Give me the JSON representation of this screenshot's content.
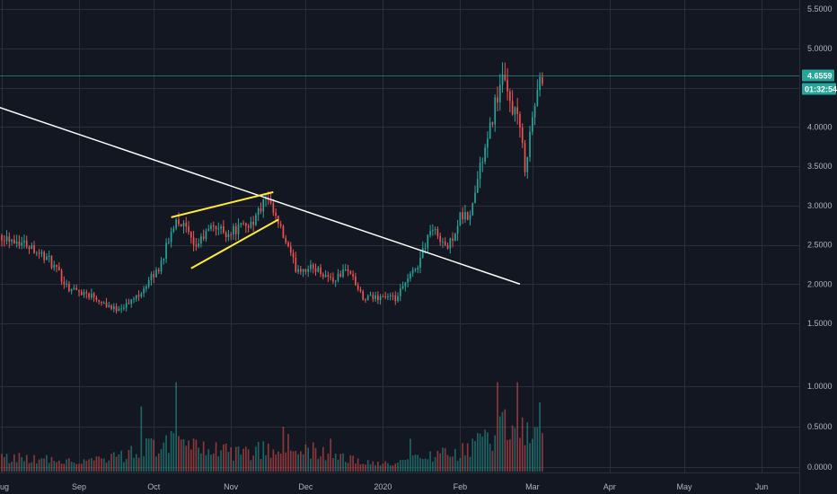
{
  "chart_data": {
    "type": "candlestick",
    "symbol_type": "price chart with volume histogram",
    "x_axis": {
      "labels": [
        "Aug",
        "Sep",
        "Oct",
        "Nov",
        "Dec",
        "2020",
        "Feb",
        "Mar",
        "Apr",
        "May",
        "Jun"
      ],
      "label_dates": [
        "2019-08-01",
        "2019-09-01",
        "2019-10-01",
        "2019-11-01",
        "2019-12-01",
        "2020-01-01",
        "2020-02-01",
        "2020-03-01",
        "2020-04-01",
        "2020-05-01",
        "2020-06-01"
      ],
      "range": [
        "2019-08-01",
        "2020-06-15"
      ]
    },
    "price_axis": {
      "ticks": [
        1.5,
        2.0,
        2.5,
        3.0,
        3.5,
        4.0,
        4.5,
        5.0,
        5.5
      ],
      "tick_labels": [
        "1.5000",
        "2.0000",
        "2.5000",
        "3.0000",
        "3.5000",
        "4.0000",
        "4.5000",
        "5.0000",
        "5.5000"
      ],
      "range": [
        1.25,
        5.6
      ]
    },
    "volume_axis": {
      "ticks": [
        0.0,
        0.5,
        1.0
      ],
      "tick_labels": [
        "0.0000",
        "0.5000",
        "1.0000"
      ],
      "range": [
        -0.38,
        1.04
      ]
    },
    "current_price": {
      "value": 4.6559,
      "label": "4.6559",
      "countdown": "01:32:54",
      "color": "#26a69a"
    },
    "colors": {
      "up": "#26a69a",
      "down": "#ef5350",
      "background": "#131722",
      "grid": "#2a2e39",
      "trendline": "#ffffff",
      "pattern_lines": "#ffeb3b"
    },
    "grid": true,
    "annotations": [
      {
        "type": "trendline",
        "color": "#ffffff",
        "start": [
          "2019-07-28",
          4.28
        ],
        "end": [
          "2020-02-25",
          2.0
        ]
      },
      {
        "type": "line",
        "color": "#ffeb3b",
        "start": [
          "2019-10-08",
          2.85
        ],
        "end": [
          "2019-11-18",
          3.17
        ]
      },
      {
        "type": "line",
        "color": "#ffeb3b",
        "start": [
          "2019-10-16",
          2.2
        ],
        "end": [
          "2019-11-20",
          2.82
        ]
      }
    ],
    "price_path": [
      [
        "2019-08-01",
        2.62
      ],
      [
        "2019-08-12",
        2.5
      ],
      [
        "2019-08-20",
        2.3
      ],
      [
        "2019-08-28",
        1.95
      ],
      [
        "2019-09-07",
        1.85
      ],
      [
        "2019-09-15",
        1.68
      ],
      [
        "2019-09-21",
        1.75
      ],
      [
        "2019-09-27",
        1.95
      ],
      [
        "2019-10-03",
        2.2
      ],
      [
        "2019-10-07",
        2.55
      ],
      [
        "2019-10-10",
        2.85
      ],
      [
        "2019-10-14",
        2.7
      ],
      [
        "2019-10-17",
        2.45
      ],
      [
        "2019-10-21",
        2.6
      ],
      [
        "2019-10-25",
        2.75
      ],
      [
        "2019-10-30",
        2.65
      ],
      [
        "2019-11-05",
        2.72
      ],
      [
        "2019-11-10",
        2.8
      ],
      [
        "2019-11-15",
        3.08
      ],
      [
        "2019-11-18",
        2.9
      ],
      [
        "2019-11-22",
        2.6
      ],
      [
        "2019-11-27",
        2.2
      ],
      [
        "2019-12-05",
        2.2
      ],
      [
        "2019-12-12",
        2.05
      ],
      [
        "2019-12-18",
        2.2
      ],
      [
        "2019-12-24",
        1.8
      ],
      [
        "2020-01-01",
        1.85
      ],
      [
        "2020-01-06",
        1.8
      ],
      [
        "2020-01-10",
        2.0
      ],
      [
        "2020-01-15",
        2.25
      ],
      [
        "2020-01-20",
        2.7
      ],
      [
        "2020-01-24",
        2.6
      ],
      [
        "2020-01-27",
        2.45
      ],
      [
        "2020-02-01",
        2.85
      ],
      [
        "2020-02-05",
        2.85
      ],
      [
        "2020-02-09",
        3.5
      ],
      [
        "2020-02-12",
        3.8
      ],
      [
        "2020-02-15",
        4.3
      ],
      [
        "2020-02-18",
        4.6
      ],
      [
        "2020-02-21",
        4.3
      ],
      [
        "2020-02-24",
        4.15
      ],
      [
        "2020-02-27",
        3.5
      ],
      [
        "2020-03-01",
        4.1
      ],
      [
        "2020-03-03",
        4.45
      ],
      [
        "2020-03-05",
        4.65
      ]
    ],
    "volume_profile": [
      [
        "2019-08-01",
        0.12
      ],
      [
        "2019-08-20",
        0.1
      ],
      [
        "2019-09-01",
        0.08
      ],
      [
        "2019-09-20",
        0.15
      ],
      [
        "2019-10-05",
        0.35
      ],
      [
        "2019-10-20",
        0.2
      ],
      [
        "2019-11-10",
        0.18
      ],
      [
        "2019-11-20",
        0.3
      ],
      [
        "2019-12-10",
        0.15
      ],
      [
        "2019-12-25",
        0.06
      ],
      [
        "2020-01-05",
        0.04
      ],
      [
        "2020-01-20",
        0.15
      ],
      [
        "2020-02-05",
        0.2
      ],
      [
        "2020-02-15",
        0.5
      ],
      [
        "2020-03-05",
        0.5
      ]
    ],
    "volume_spikes": [
      [
        "2019-09-26",
        0.75
      ],
      [
        "2019-10-10",
        1.05
      ],
      [
        "2019-11-22",
        0.5
      ],
      [
        "2019-12-11",
        0.35
      ],
      [
        "2020-01-12",
        0.35
      ],
      [
        "2020-02-16",
        1.05
      ],
      [
        "2020-02-24",
        1.05
      ],
      [
        "2020-03-04",
        0.8
      ]
    ]
  }
}
